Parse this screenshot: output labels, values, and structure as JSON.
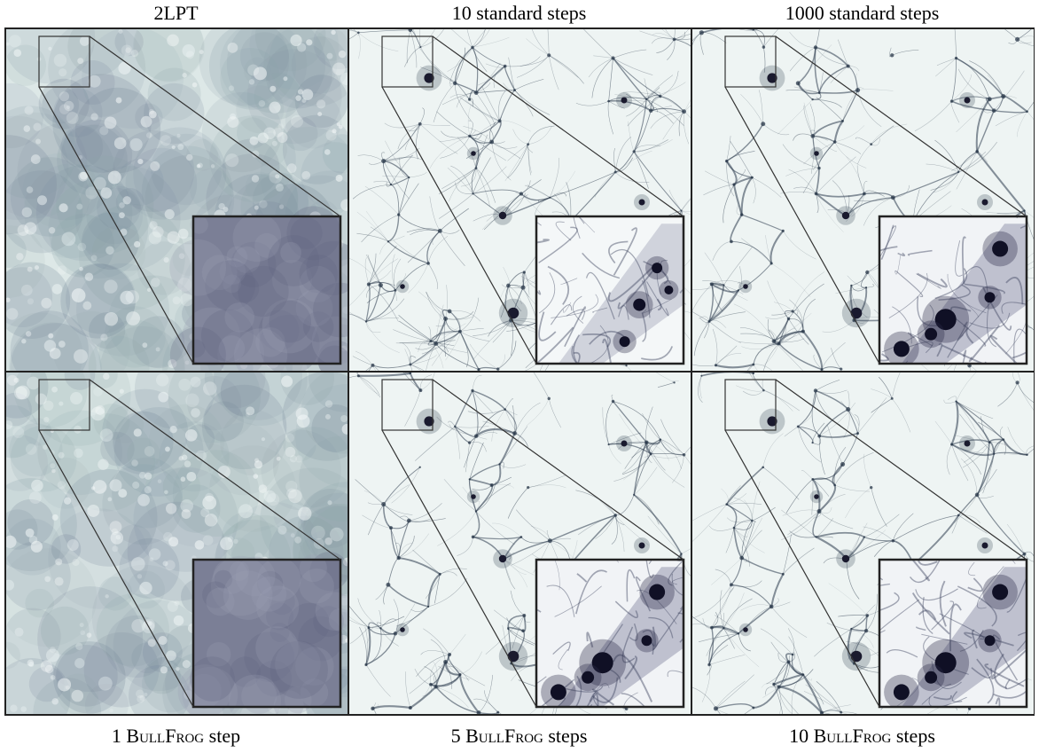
{
  "columns_top": [
    {
      "text": "2LPT"
    },
    {
      "text": "10 standard steps"
    },
    {
      "text": "1000 standard steps"
    }
  ],
  "columns_bottom": [
    {
      "num": "1 ",
      "name": "BullFrog",
      "suffix": " step"
    },
    {
      "num": "5 ",
      "name": "BullFrog",
      "suffix": " steps"
    },
    {
      "num": "10 ",
      "name": "BullFrog",
      "suffix": " steps"
    }
  ],
  "colors": {
    "background_light": "#eef4f3",
    "haze": "#8fa6ab",
    "filament": "#2c3b4c",
    "halo": "#1a1a2e",
    "inset_fog": "#7b7f96",
    "frame": "#222222"
  }
}
